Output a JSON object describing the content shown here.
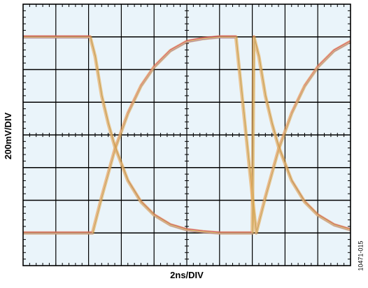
{
  "chart_data": {
    "type": "line",
    "title": "",
    "xlabel": "2ns/DIV",
    "ylabel": "200mV/DIV",
    "figure_id": "10471-015",
    "grid": true,
    "x_divisions": 10,
    "y_divisions": 8,
    "xlim": [
      0,
      10
    ],
    "ylim": [
      0,
      8
    ],
    "trace_colors": [
      "#e8a040",
      "#d04070",
      "#7a60c0",
      "#c0b040",
      "#f0c080"
    ],
    "series": [
      {
        "x": [
          0,
          2.12,
          2.4,
          2.8,
          3.2,
          3.6,
          4.0,
          4.5,
          5.0,
          5.5,
          6.0,
          6.5,
          7.12,
          7.4,
          7.8,
          8.2,
          8.6,
          9.0,
          9.5,
          10
        ],
        "y": [
          1.0,
          1.0,
          2.1,
          3.55,
          4.66,
          5.5,
          6.08,
          6.58,
          6.86,
          6.95,
          7.0,
          7.0,
          1.0,
          2.1,
          3.55,
          4.66,
          5.5,
          6.08,
          6.58,
          6.86
        ]
      },
      {
        "x": [
          0,
          2.05,
          2.2,
          2.4,
          2.6,
          2.8,
          3.2,
          3.6,
          4.0,
          4.5,
          5.0,
          5.5,
          6.0,
          7.0,
          7.05,
          7.2,
          7.4,
          7.6,
          7.8,
          8.2,
          8.6,
          9.0,
          9.5,
          10
        ],
        "y": [
          7.0,
          7.0,
          6.4,
          5.2,
          4.35,
          3.65,
          2.6,
          1.95,
          1.55,
          1.25,
          1.1,
          1.04,
          1.0,
          1.0,
          7.0,
          6.4,
          5.2,
          4.35,
          3.65,
          2.6,
          1.95,
          1.55,
          1.25,
          1.1
        ]
      }
    ]
  }
}
